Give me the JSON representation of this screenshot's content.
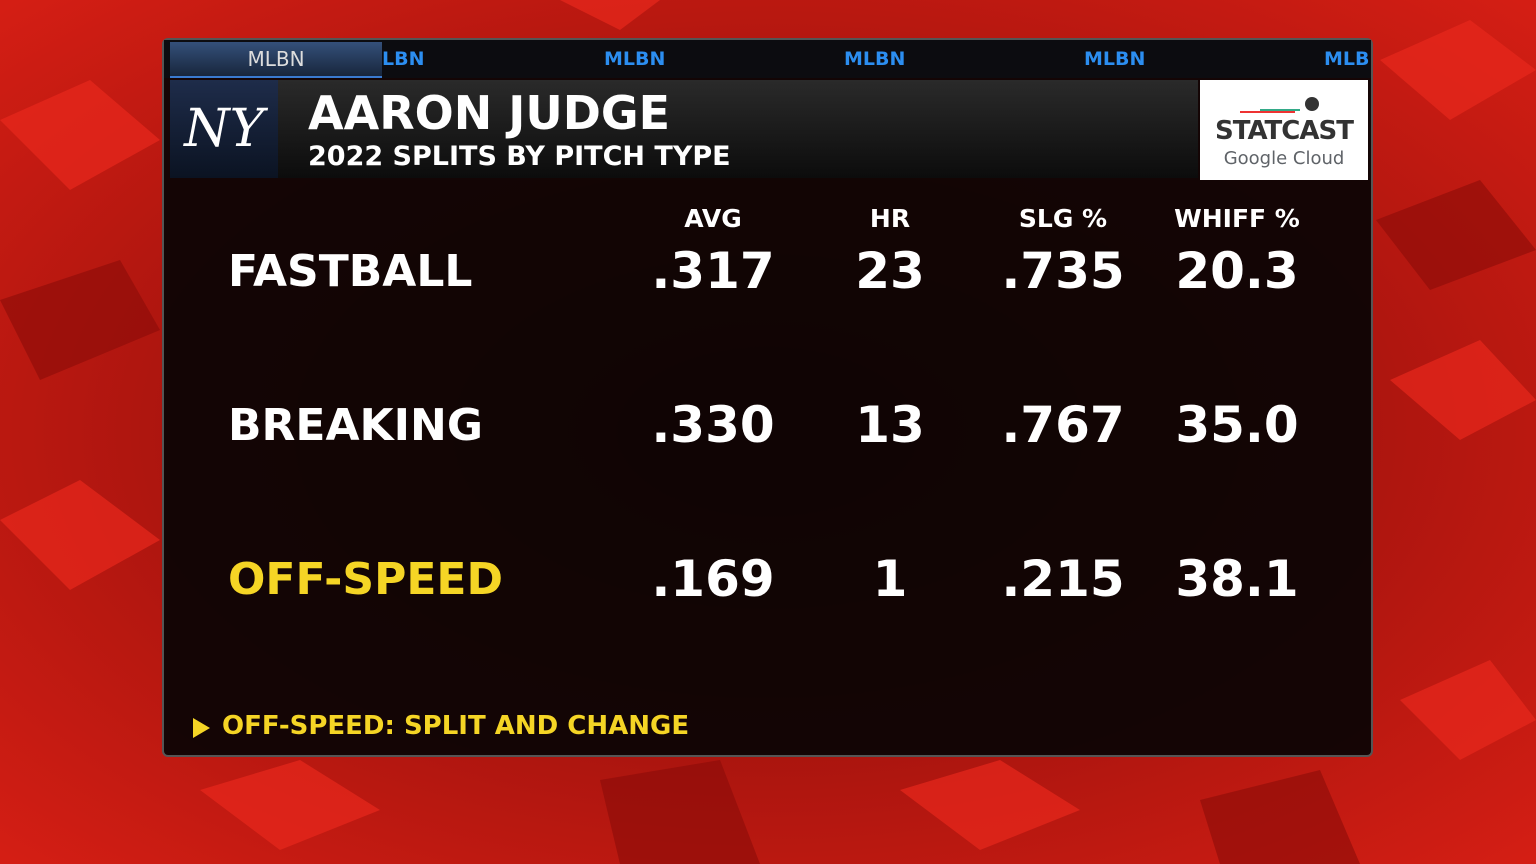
{
  "ticker": {
    "tab": "MLBN",
    "items": [
      "LBN",
      "MLBN",
      "MLBN",
      "MLBN",
      "MLB"
    ]
  },
  "header": {
    "title": "AARON JUDGE",
    "subtitle": "2022 SPLITS BY PITCH TYPE"
  },
  "logo": {
    "title": "STATCAST",
    "subtitle": "Google Cloud"
  },
  "table": {
    "columns": [
      "AVG",
      "HR",
      "SLG %",
      "WHIFF %"
    ],
    "rows": [
      {
        "label": "FASTBALL",
        "cells": [
          ".317",
          23,
          ".735",
          "20.3"
        ],
        "highlight": false
      },
      {
        "label": "BREAKING",
        "cells": [
          ".330",
          13,
          ".767",
          "35.0"
        ],
        "highlight": false
      },
      {
        "label": "OFF-SPEED",
        "cells": [
          ".169",
          1,
          ".215",
          "38.1"
        ],
        "highlight": true
      }
    ]
  },
  "footnote": "OFF-SPEED: SPLIT AND CHANGE"
}
